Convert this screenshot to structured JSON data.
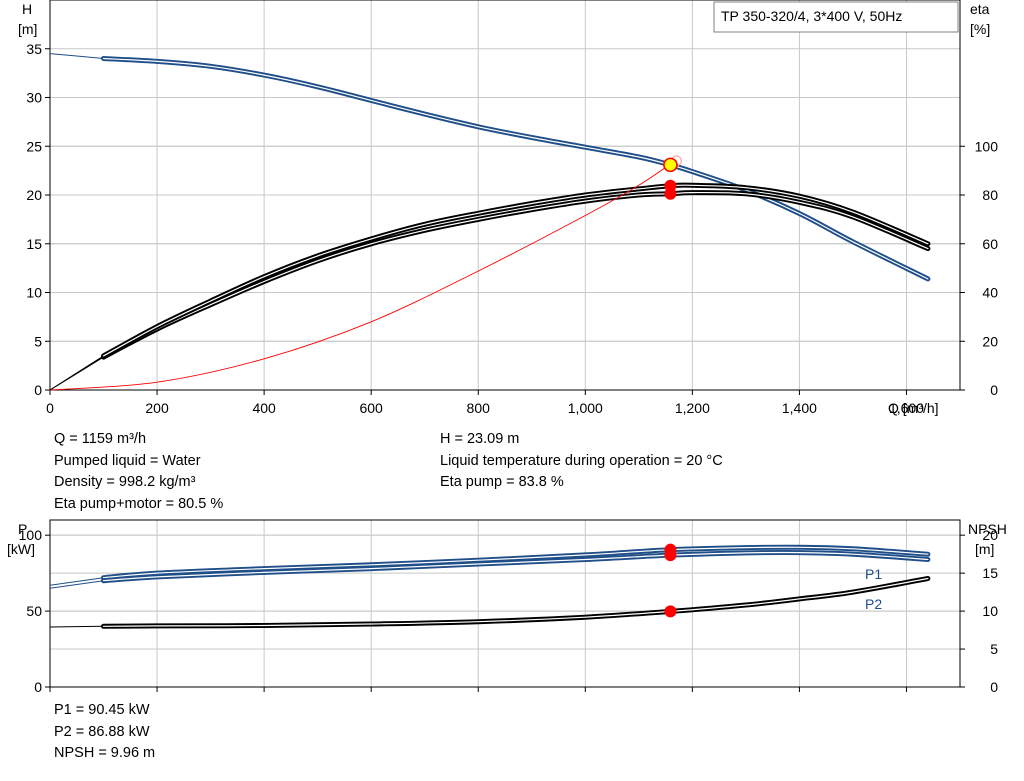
{
  "header": {
    "model": "TP 350-320/4, 3*400 V, 50Hz"
  },
  "top_info": {
    "left": [
      "Q = 1159 m³/h",
      "Pumped liquid = Water",
      "Density = 998.2 kg/m³",
      "Eta pump+motor = 80.5 %"
    ],
    "right": [
      "H = 23.09 m",
      "Liquid temperature during operation = 20 °C",
      "Eta pump = 83.8 %"
    ]
  },
  "bottom_info": [
    "P1 = 90.45 kW",
    "P2 = 86.88 kW",
    "NPSH = 9.96 m"
  ],
  "colors": {
    "head": "#1f4e89",
    "eta": "#000000",
    "system": "#ff0000",
    "point": "#ff0000",
    "duty_fill": "#ffff00",
    "grid": "#c8c8c8"
  },
  "chart_data": [
    {
      "type": "line",
      "xlabel": "Q [m³/h]",
      "ylabel": "H\n[m]",
      "y2label": "eta\n[%]",
      "xlim": [
        0,
        1700
      ],
      "ylim": [
        0,
        40
      ],
      "y2lim": [
        0,
        160
      ],
      "x_ticks": [
        0,
        200,
        400,
        600,
        800,
        1000,
        1200,
        1400,
        1600
      ],
      "x_tick_labels": [
        "0",
        "200",
        "400",
        "600",
        "800",
        "1,000",
        "1,200",
        "1,400",
        "1,600"
      ],
      "y_ticks": [
        0,
        5,
        10,
        15,
        20,
        25,
        30,
        35
      ],
      "y2_ticks": [
        0,
        20,
        40,
        60,
        80,
        100
      ],
      "grid": true,
      "series": [
        {
          "axis": "y",
          "style": "head",
          "x": [
            0,
            100,
            200,
            300,
            400,
            500,
            600,
            700,
            800,
            900,
            1000,
            1100,
            1159,
            1200,
            1300,
            1400,
            1500,
            1640
          ],
          "y": [
            34.5,
            34.0,
            33.7,
            33.2,
            32.3,
            31.1,
            29.7,
            28.3,
            27.0,
            25.9,
            24.9,
            23.9,
            23.09,
            22.4,
            20.5,
            18.1,
            15.2,
            11.4
          ]
        },
        {
          "axis": "y2",
          "style": "eta",
          "x": [
            0,
            100,
            200,
            300,
            400,
            500,
            600,
            700,
            800,
            900,
            1000,
            1100,
            1159,
            1200,
            1300,
            1400,
            1500,
            1640
          ],
          "y": [
            0,
            13.5,
            25,
            35,
            44.5,
            53,
            60,
            65.5,
            70,
            74,
            77.5,
            80,
            80.5,
            81,
            80.5,
            77,
            71,
            58
          ]
        },
        {
          "axis": "y2",
          "style": "eta",
          "x": [
            0,
            100,
            200,
            300,
            400,
            500,
            600,
            700,
            800,
            900,
            1000,
            1100,
            1159,
            1200,
            1300,
            1400,
            1500,
            1640
          ],
          "y": [
            0,
            14,
            26,
            36.5,
            46.5,
            55,
            62,
            68,
            72.5,
            76.5,
            80,
            82.5,
            83.8,
            84,
            83,
            79.5,
            73,
            60
          ]
        },
        {
          "axis": "y",
          "style": "system",
          "x": [
            0,
            200,
            400,
            600,
            800,
            1000,
            1100,
            1170
          ],
          "y": [
            0,
            0.8,
            3.2,
            7.0,
            12.2,
            17.9,
            21.0,
            23.6
          ]
        }
      ],
      "points": [
        {
          "x": 1159,
          "axis": "y",
          "y": 23.09,
          "style": "duty"
        },
        {
          "x": 1159,
          "axis": "y2",
          "y": 83.8,
          "style": "point"
        },
        {
          "x": 1159,
          "axis": "y2",
          "y": 80.5,
          "style": "point"
        }
      ]
    },
    {
      "type": "line",
      "ylabel": "P\n[kW]",
      "y2label": "NPSH\n[m]",
      "xlim": [
        0,
        1700
      ],
      "ylim": [
        0,
        110
      ],
      "y2lim": [
        0,
        22
      ],
      "y_ticks": [
        0,
        50,
        100
      ],
      "y2_ticks": [
        0,
        5,
        10,
        15,
        20
      ],
      "grid": true,
      "series": [
        {
          "name": "P1",
          "axis": "y",
          "style": "head",
          "x": [
            0,
            100,
            200,
            400,
            600,
            800,
            1000,
            1159,
            1300,
            1400,
            1500,
            1640
          ],
          "y": [
            67,
            72,
            75,
            78,
            80.5,
            83.5,
            87,
            90.45,
            91.8,
            92,
            91,
            87.5
          ]
        },
        {
          "name": "P2",
          "axis": "y",
          "style": "head",
          "x": [
            0,
            100,
            200,
            400,
            600,
            800,
            1000,
            1159,
            1300,
            1400,
            1500,
            1640
          ],
          "y": [
            65,
            70,
            72.5,
            75.5,
            78,
            81,
            84,
            86.88,
            88.3,
            88.5,
            87.5,
            84
          ]
        },
        {
          "axis": "y2",
          "style": "eta",
          "x": [
            0,
            100,
            200,
            400,
            600,
            800,
            1000,
            1159,
            1300,
            1400,
            1500,
            1640
          ],
          "y": [
            7.9,
            8.0,
            8.05,
            8.1,
            8.3,
            8.6,
            9.2,
            9.96,
            10.8,
            11.6,
            12.5,
            14.3
          ]
        }
      ],
      "points": [
        {
          "x": 1159,
          "axis": "y",
          "y": 90.45,
          "style": "point"
        },
        {
          "x": 1159,
          "axis": "y",
          "y": 86.88,
          "style": "point"
        },
        {
          "x": 1159,
          "axis": "y2",
          "y": 9.96,
          "style": "point"
        }
      ]
    }
  ]
}
